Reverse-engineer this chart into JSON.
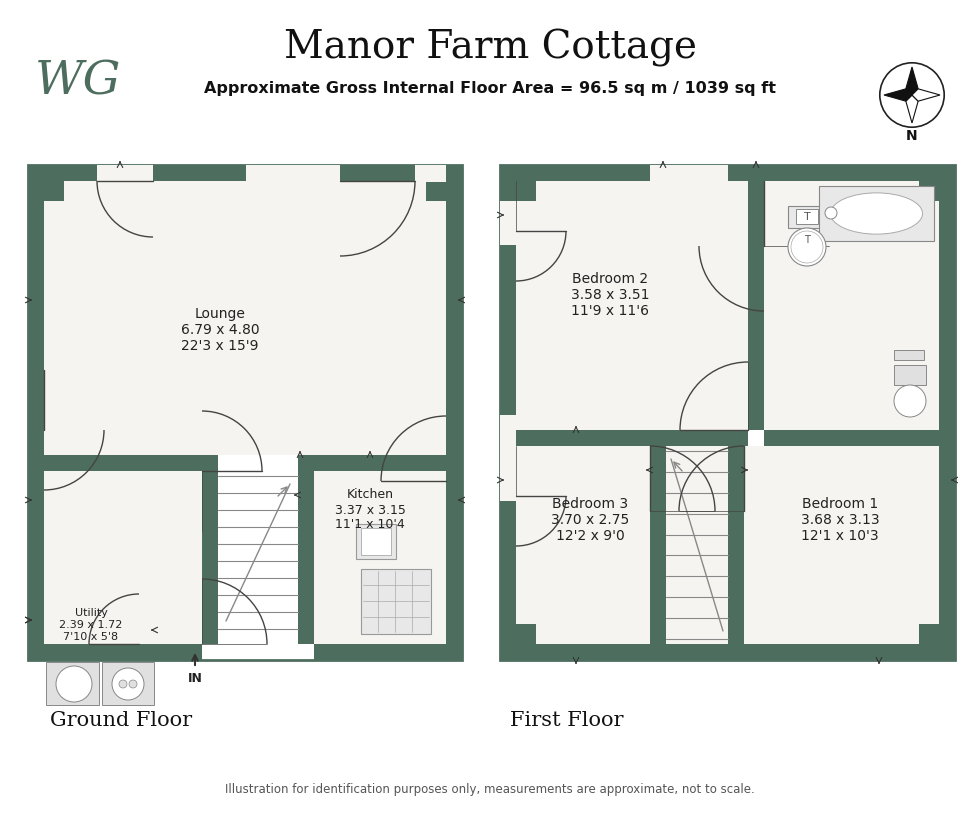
{
  "title": "Manor Farm Cottage",
  "subtitle": "Approximate Gross Internal Floor Area = 96.5 sq m / 1039 sq ft",
  "ground_floor_label": "Ground Floor",
  "first_floor_label": "First Floor",
  "disclaimer": "Illustration for identification purposes only, measurements are approximate, not to scale.",
  "bg_color": "#ffffff",
  "wall_color": "#4d6e5e",
  "room_fill": "#f5f4f0"
}
